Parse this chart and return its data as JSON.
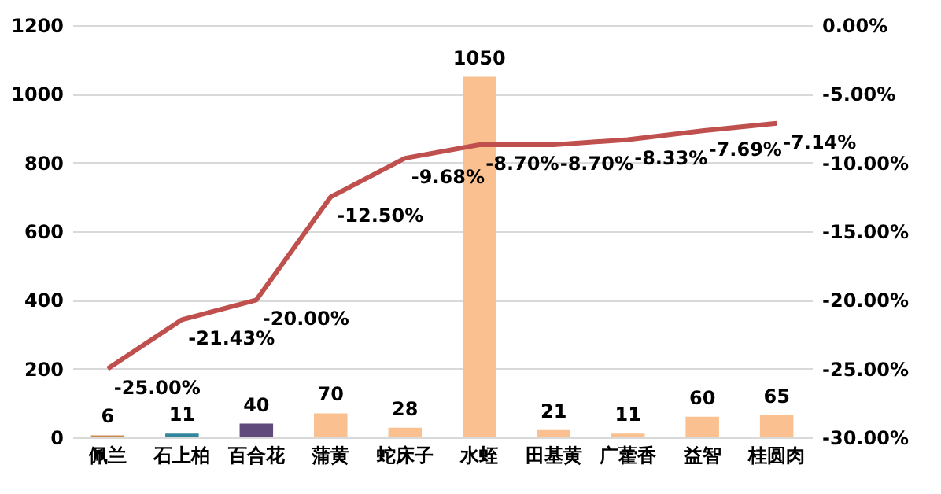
{
  "chart_data": {
    "type": "bar",
    "categories": [
      "佩兰",
      "石上柏",
      "百合花",
      "蒲黄",
      "蛇床子",
      "水蛭",
      "田基黄",
      "广藿香",
      "益智",
      "桂圆肉"
    ],
    "series": [
      {
        "colors": [
          "#c98a4b",
          "#31859c",
          "#604a7b",
          "#fac090",
          "#fac090",
          "#fac090",
          "#fac090",
          "#fac090",
          "#fac090",
          "#fac090"
        ],
        "values": [
          6,
          11,
          40,
          70,
          28,
          1050,
          21,
          11,
          60,
          65
        ],
        "value_labels": [
          "6",
          "11",
          "40",
          "70",
          "28",
          "1050",
          "21",
          "11",
          "60",
          "65"
        ]
      },
      {
        "type": "line",
        "axis": "y2",
        "color": "#c0504d",
        "values": [
          -25.0,
          -21.43,
          -20.0,
          -12.5,
          -9.68,
          -8.7,
          -8.7,
          -8.33,
          -7.69,
          -7.14
        ],
        "value_labels": [
          "-25.00%",
          "-21.43%",
          "-20.00%",
          "-12.50%",
          "-9.68%",
          "-8.70%",
          "-8.70%",
          "-8.33%",
          "-7.69%",
          "-7.14%"
        ]
      }
    ],
    "ylim": [
      0,
      1200
    ],
    "yticks": [
      0,
      200,
      400,
      600,
      800,
      1000,
      1200
    ],
    "y2lim": [
      -30,
      0
    ],
    "y2ticks": [
      {
        "value": -30,
        "label": "-30.00%"
      },
      {
        "value": -25,
        "label": "-25.00%"
      },
      {
        "value": -20,
        "label": "-20.00%"
      },
      {
        "value": -15,
        "label": "-15.00%"
      },
      {
        "value": -10,
        "label": "-10.00%"
      },
      {
        "value": -5,
        "label": "-5.00%"
      },
      {
        "value": 0,
        "label": "0.00%"
      }
    ],
    "grid": "y",
    "marker": "none",
    "line_style": "solid"
  }
}
